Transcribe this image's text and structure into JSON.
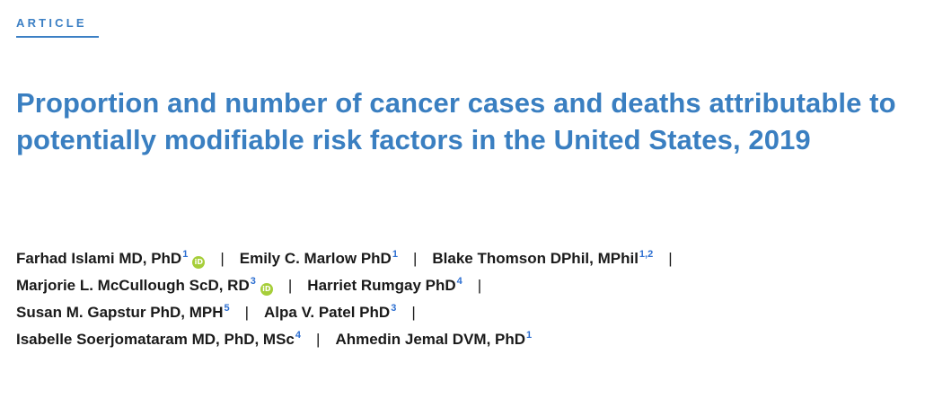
{
  "header": {
    "section_label": "ARTICLE"
  },
  "title": "Proportion and number of cancer cases and deaths attributable to potentially modifiable risk factors in the United States, 2019",
  "separator": "|",
  "orcid_icon_text": "iD",
  "authors": [
    {
      "name": "Farhad Islami MD, PhD",
      "affiliation": "1",
      "orcid": true
    },
    {
      "name": "Emily C. Marlow PhD",
      "affiliation": "1",
      "orcid": false
    },
    {
      "name": "Blake Thomson DPhil, MPhil",
      "affiliation": "1,2",
      "orcid": false
    },
    {
      "name": "Marjorie L. McCullough ScD, RD",
      "affiliation": "3",
      "orcid": true
    },
    {
      "name": "Harriet Rumgay PhD",
      "affiliation": "4",
      "orcid": false
    },
    {
      "name": "Susan M. Gapstur PhD, MPH",
      "affiliation": "5",
      "orcid": false
    },
    {
      "name": "Alpa V. Patel PhD",
      "affiliation": "3",
      "orcid": false
    },
    {
      "name": "Isabelle Soerjomataram MD, PhD, MSc",
      "affiliation": "4",
      "orcid": false
    },
    {
      "name": "Ahmedin Jemal DVM, PhD",
      "affiliation": "1",
      "orcid": false
    }
  ],
  "colors": {
    "accent": "#3a7fc1",
    "affiliation_link": "#2d6fd1",
    "orcid": "#a6ce39",
    "text": "#1a1a1a"
  }
}
